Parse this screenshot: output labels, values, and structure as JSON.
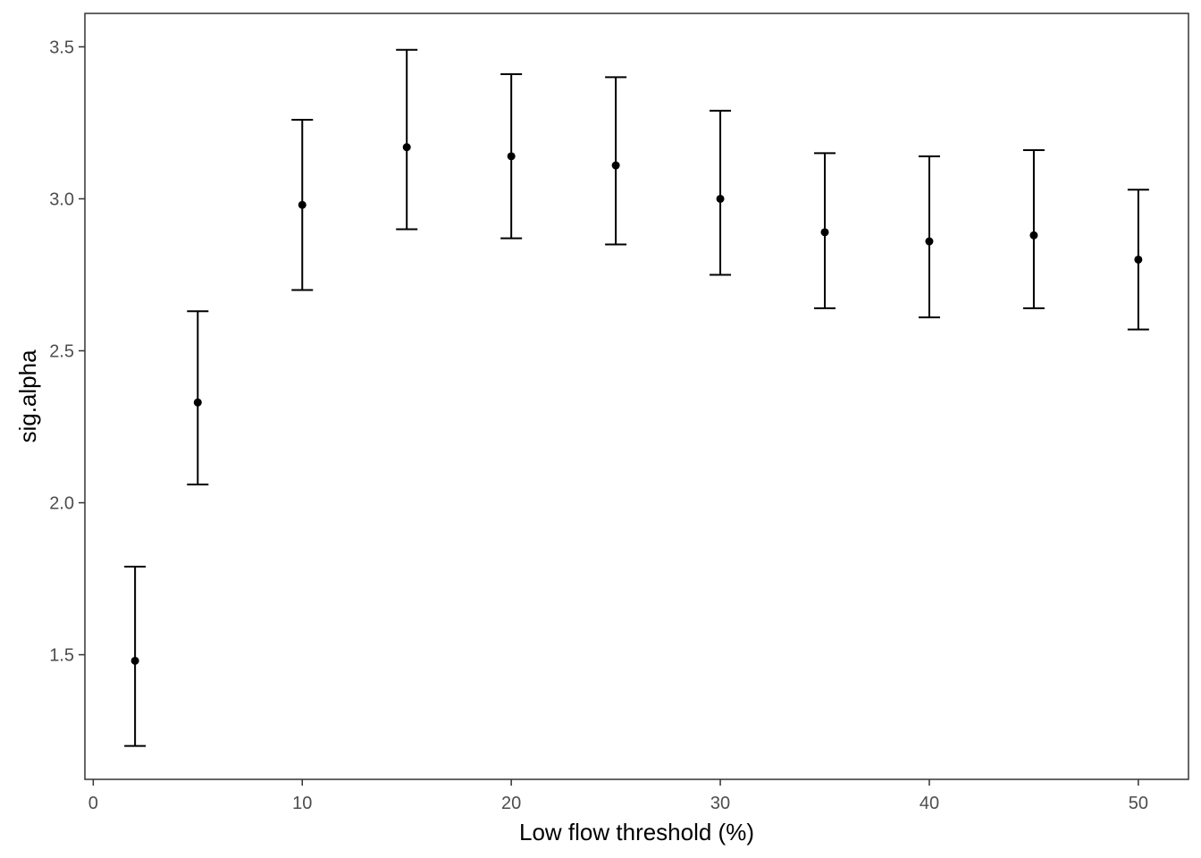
{
  "chart_data": {
    "type": "scatter",
    "title": "",
    "xlabel": "Low flow threshold (%)",
    "ylabel": "sig.alpha",
    "xlim": [
      -0.4,
      52.4
    ],
    "ylim": [
      1.09,
      3.61
    ],
    "x_ticks": [
      0,
      10,
      20,
      30,
      40,
      50
    ],
    "x_tick_labels": [
      "0",
      "10",
      "20",
      "30",
      "40",
      "50"
    ],
    "y_ticks": [
      1.5,
      2.0,
      2.5,
      3.0,
      3.5
    ],
    "y_tick_labels": [
      "1.5",
      "2.0",
      "2.5",
      "3.0",
      "3.5"
    ],
    "grid": false,
    "points": [
      {
        "x": 2,
        "y": 1.48,
        "ymin": 1.2,
        "ymax": 1.79
      },
      {
        "x": 5,
        "y": 2.33,
        "ymin": 2.06,
        "ymax": 2.63
      },
      {
        "x": 10,
        "y": 2.98,
        "ymin": 2.7,
        "ymax": 3.26
      },
      {
        "x": 15,
        "y": 3.17,
        "ymin": 2.9,
        "ymax": 3.49
      },
      {
        "x": 20,
        "y": 3.14,
        "ymin": 2.87,
        "ymax": 3.41
      },
      {
        "x": 25,
        "y": 3.11,
        "ymin": 2.85,
        "ymax": 3.4
      },
      {
        "x": 30,
        "y": 3.0,
        "ymin": 2.75,
        "ymax": 3.29
      },
      {
        "x": 35,
        "y": 2.89,
        "ymin": 2.64,
        "ymax": 3.15
      },
      {
        "x": 40,
        "y": 2.86,
        "ymin": 2.61,
        "ymax": 3.14
      },
      {
        "x": 45,
        "y": 2.88,
        "ymin": 2.64,
        "ymax": 3.16
      },
      {
        "x": 50,
        "y": 2.8,
        "ymin": 2.57,
        "ymax": 3.03
      }
    ],
    "colors": {
      "points": "#000000",
      "panel_border": "#333333",
      "tick_text": "#4d4d4d"
    }
  }
}
